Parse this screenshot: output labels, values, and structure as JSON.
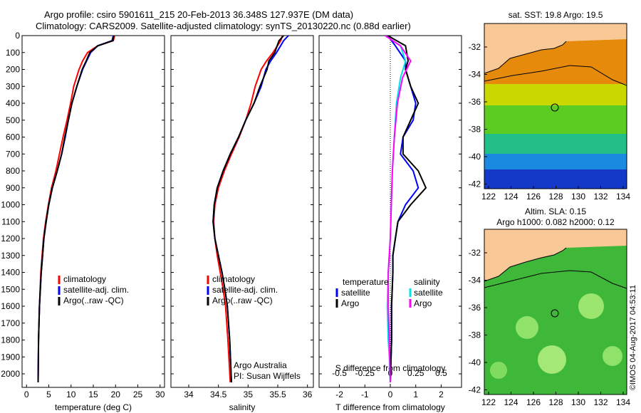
{
  "header": {
    "title_line1": "Argo profile: csiro 5901611_215 20-Feb-2013 36.348S 127.937E (DM data)",
    "title_line2": "Climatology: CARS2009. Satellite-adjusted climatology: synTS_20130220.nc (0.88d earlier)"
  },
  "map_sst": {
    "title": "sat. SST: 19.8 Argo: 19.5",
    "lat_ticks": [
      "-32",
      "-34",
      "-36",
      "-38",
      "-40",
      "-42"
    ],
    "lon_ticks": [
      "122",
      "124",
      "126",
      "128",
      "130",
      "132",
      "134"
    ]
  },
  "map_sla": {
    "title1": "Altim. SLA: 0.15",
    "title2": "Argo h1000: 0.082 h2000: 0.12",
    "lat_ticks": [
      "-32",
      "-34",
      "-36",
      "-38",
      "-40",
      "-42"
    ],
    "lon_ticks": [
      "122",
      "124",
      "126",
      "128",
      "130",
      "132",
      "134"
    ]
  },
  "stamp": "©IMOS 04-Aug-2017 04:53:11",
  "credits": {
    "line1": "Argo Australia",
    "line2": "PI: Susan Wijffels"
  },
  "colors": {
    "climatology": "#ff0000",
    "satellite": "#0000ff",
    "argo": "#000000",
    "sat_salinity": "#00e5e5",
    "argo_salinity": "#ff00ff"
  },
  "chart_data": [
    {
      "type": "line",
      "xlabel": "temperature (deg C)",
      "ylabel": "",
      "xlim": [
        -1,
        31
      ],
      "ylim": [
        2080,
        0
      ],
      "xticks": [
        "0",
        "5",
        "10",
        "15",
        "20",
        "25",
        "30"
      ],
      "yticks": [
        "0",
        "100",
        "200",
        "300",
        "400",
        "500",
        "600",
        "700",
        "800",
        "900",
        "1000",
        "1100",
        "1200",
        "1300",
        "1400",
        "1500",
        "1600",
        "1700",
        "1800",
        "1900",
        "2000"
      ],
      "legend": [
        "climatology",
        "satellite-adj. clim.",
        "Argo(..raw -QC)"
      ],
      "series": [
        {
          "name": "climatology",
          "color": "#ff0000",
          "x": [
            19.8,
            19.5,
            16,
            13.7,
            12.6,
            11.8,
            10.6,
            9.9,
            9.1,
            8.2,
            7.4,
            6.6,
            5.6,
            4.9,
            4.3,
            3.8,
            3.5,
            3.2,
            2.9,
            2.7,
            2.6
          ],
          "y": [
            0,
            30,
            60,
            100,
            150,
            200,
            300,
            400,
            500,
            600,
            700,
            800,
            900,
            1000,
            1100,
            1200,
            1300,
            1400,
            1600,
            1800,
            2050
          ]
        },
        {
          "name": "satellite-adj. clim.",
          "color": "#0000ff",
          "x": [
            19.5,
            19.2,
            16,
            14.4,
            13.5,
            12.6,
            11.3,
            10.2,
            9.4,
            8.7,
            7.9,
            6.9,
            5.8,
            5,
            4.4,
            3.9,
            3.6,
            3.3,
            2.9,
            2.7,
            2.6
          ],
          "y": [
            0,
            30,
            60,
            100,
            150,
            200,
            300,
            400,
            500,
            600,
            700,
            800,
            900,
            1000,
            1100,
            1200,
            1300,
            1400,
            1600,
            1800,
            2050
          ]
        },
        {
          "name": "Argo(..raw -QC)",
          "color": "#000000",
          "x": [
            19.6,
            19.4,
            16,
            14.2,
            13.4,
            12.5,
            11.3,
            10.2,
            9.4,
            8.6,
            7.9,
            6.9,
            5.8,
            5,
            4.4,
            3.9,
            3.6,
            3.3,
            2.9,
            2.7,
            2.6
          ],
          "y": [
            0,
            30,
            60,
            100,
            150,
            200,
            300,
            400,
            500,
            600,
            700,
            800,
            900,
            1000,
            1100,
            1200,
            1300,
            1400,
            1600,
            1800,
            2050
          ]
        }
      ]
    },
    {
      "type": "line",
      "xlabel": "salinity",
      "ylabel": "",
      "xlim": [
        33.7,
        36.1
      ],
      "ylim": [
        2080,
        0
      ],
      "xticks": [
        "34",
        "34.5",
        "35",
        "35.5",
        "36"
      ],
      "legend": [
        "climatology",
        "satellite-adj. clim.",
        "Argo(..raw -QC)"
      ],
      "series": [
        {
          "name": "climatology",
          "color": "#ff0000",
          "x": [
            35.58,
            35.55,
            35.42,
            35.31,
            35.22,
            35.12,
            35.05,
            34.96,
            34.85,
            34.72,
            34.6,
            34.5,
            34.44,
            34.42,
            34.44,
            34.48,
            34.53,
            34.58,
            34.62,
            34.66,
            34.7
          ],
          "y": [
            0,
            30,
            100,
            150,
            200,
            300,
            400,
            500,
            600,
            700,
            800,
            900,
            1000,
            1100,
            1200,
            1300,
            1400,
            1500,
            1600,
            1800,
            2050
          ]
        },
        {
          "name": "satellite-adj. clim.",
          "color": "#0000ff",
          "x": [
            35.68,
            35.6,
            35.48,
            35.38,
            35.3,
            35.22,
            35.1,
            34.96,
            34.84,
            34.7,
            34.58,
            34.48,
            34.43,
            34.41,
            34.44,
            34.5,
            34.56,
            34.61,
            34.65,
            34.69,
            34.72
          ],
          "y": [
            0,
            30,
            100,
            150,
            200,
            300,
            400,
            500,
            600,
            700,
            800,
            900,
            1000,
            1100,
            1200,
            1300,
            1400,
            1500,
            1600,
            1800,
            2050
          ]
        },
        {
          "name": "Argo(..raw -QC)",
          "color": "#000000",
          "x": [
            35.6,
            35.52,
            35.45,
            35.35,
            35.32,
            35.2,
            35.1,
            34.96,
            34.84,
            34.7,
            34.58,
            34.48,
            34.43,
            34.41,
            34.44,
            34.5,
            34.56,
            34.61,
            34.65,
            34.69,
            34.72
          ],
          "y": [
            0,
            30,
            100,
            150,
            200,
            300,
            400,
            500,
            600,
            700,
            800,
            900,
            1000,
            1100,
            1200,
            1300,
            1400,
            1500,
            1600,
            1800,
            2050
          ]
        }
      ],
      "annotations": [
        "Argo Australia",
        "PI: Susan Wijffels"
      ]
    },
    {
      "type": "line",
      "xlabel": "T difference from climatology",
      "top_label": "S difference from climatology",
      "xlim": [
        -2.8,
        2.8
      ],
      "ylim": [
        2080,
        0
      ],
      "xticks": [
        "-2",
        "-1",
        "0",
        "1",
        "2"
      ],
      "top_ticks": [
        "-0.5",
        "-0.25",
        "0",
        "0.25",
        "0.5"
      ],
      "legend": [
        "temperature",
        "satellite",
        "Argo",
        "salinity",
        "satellite",
        "Argo"
      ],
      "series": [
        {
          "name": "temperature satellite",
          "color": "#0000ff",
          "x": [
            -0.1,
            0.2,
            0.6,
            0.6,
            0.8,
            1.0,
            0.9,
            0.5,
            0.4,
            0.9,
            1.1,
            0.6,
            0.3,
            0.2,
            0.1,
            0.1,
            0.05,
            0.05,
            0.0
          ],
          "y": [
            0,
            60,
            150,
            200,
            300,
            400,
            500,
            600,
            700,
            800,
            900,
            1000,
            1100,
            1200,
            1300,
            1400,
            1600,
            1800,
            2050
          ]
        },
        {
          "name": "temperature Argo",
          "color": "#000000",
          "x": [
            -0.1,
            0.6,
            0.7,
            0.6,
            0.8,
            1.1,
            0.8,
            0.5,
            0.5,
            1.1,
            1.4,
            0.8,
            0.3,
            0.2,
            0.1,
            0.1,
            0.05,
            0.05,
            0.0
          ],
          "y": [
            0,
            60,
            150,
            200,
            300,
            400,
            500,
            600,
            700,
            800,
            900,
            1000,
            1100,
            1200,
            1300,
            1400,
            1600,
            1800,
            2050
          ]
        },
        {
          "name": "salinity satellite",
          "color": "#00e5e5",
          "x": [
            -0.05,
            0.1,
            0.15,
            0.1,
            0.06,
            0.04,
            0.02,
            0.01,
            0.0,
            -0.02,
            -0.03,
            -0.02,
            -0.01,
            0.0
          ],
          "y": [
            0,
            60,
            150,
            250,
            400,
            600,
            800,
            1000,
            1200,
            1400,
            1600,
            1800,
            1900,
            2050
          ]
        },
        {
          "name": "salinity Argo",
          "color": "#ff00ff",
          "x": [
            -0.05,
            0.1,
            0.2,
            0.12,
            0.07,
            0.04,
            0.02,
            0.01,
            0.0,
            -0.02,
            -0.02,
            -0.01,
            0.0
          ],
          "y": [
            0,
            60,
            150,
            250,
            400,
            600,
            800,
            1000,
            1200,
            1400,
            1600,
            1800,
            2050
          ]
        }
      ]
    }
  ]
}
